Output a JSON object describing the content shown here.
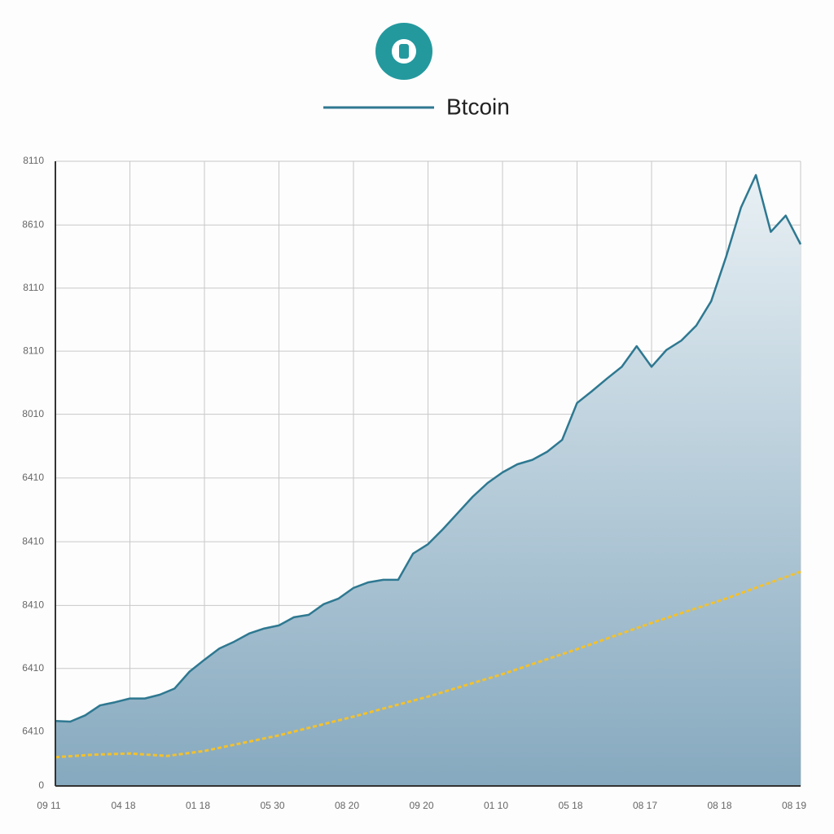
{
  "chart_data": {
    "type": "line",
    "xlim": [
      0,
      100
    ],
    "xticks": [
      {
        "value": 0,
        "label": "09 11"
      },
      {
        "value": 10,
        "label": "04 18"
      },
      {
        "value": 20,
        "label": "01 18"
      },
      {
        "value": 30,
        "label": "05 30"
      },
      {
        "value": 40,
        "label": "08 20"
      },
      {
        "value": 50,
        "label": "09 20"
      },
      {
        "value": 60,
        "label": "01 10"
      },
      {
        "value": 70,
        "label": "05 18"
      },
      {
        "value": 80,
        "label": "08 17"
      },
      {
        "value": 90,
        "label": "08 18"
      },
      {
        "value": 100,
        "label": "08 19"
      }
    ],
    "ylim": [
      0,
      1000
    ],
    "yticks": [
      0,
      {
        "value": 87,
        "label": "6410"
      },
      {
        "value": 188,
        "label": "6410"
      },
      {
        "value": 289,
        "label": "8410"
      },
      {
        "value": 391,
        "label": "8410"
      },
      {
        "value": 493,
        "label": "6410"
      },
      {
        "value": 595,
        "label": "8010"
      },
      {
        "value": 696,
        "label": "8110"
      },
      {
        "value": 797,
        "label": "8110"
      },
      {
        "value": 898,
        "label": "8610"
      },
      {
        "value": 1000,
        "label": "8110"
      }
    ],
    "grid": true,
    "series": [
      {
        "name": "Btcoin",
        "color": "#2e7891",
        "area": true,
        "x": [
          0,
          2,
          4,
          6,
          8,
          10,
          12,
          14,
          16,
          18,
          20,
          22,
          24,
          26,
          28,
          30,
          32,
          34,
          36,
          38,
          40,
          42,
          44,
          46,
          48,
          50,
          52,
          54,
          56,
          58,
          60,
          62,
          64,
          66,
          68,
          70,
          72,
          74,
          76,
          78,
          80,
          82,
          84,
          86,
          88,
          90,
          92,
          94,
          96,
          98,
          100
        ],
        "values": [
          104,
          103,
          113,
          129,
          134,
          140,
          140,
          146,
          156,
          183,
          202,
          220,
          231,
          244,
          252,
          257,
          270,
          274,
          291,
          300,
          317,
          326,
          330,
          330,
          372,
          387,
          411,
          437,
          463,
          485,
          502,
          515,
          522,
          535,
          554,
          613,
          632,
          652,
          671,
          704,
          671,
          698,
          713,
          737,
          776,
          847,
          926,
          978,
          887,
          913,
          867
        ]
      },
      {
        "color": "#f2c12e",
        "dashed": true,
        "x": [
          0,
          5,
          10,
          15,
          20,
          30,
          40,
          50,
          60,
          70,
          80,
          90,
          100
        ],
        "values": [
          46,
          50,
          52,
          48,
          56,
          81,
          111,
          143,
          179,
          219,
          261,
          300,
          343
        ]
      }
    ]
  }
}
